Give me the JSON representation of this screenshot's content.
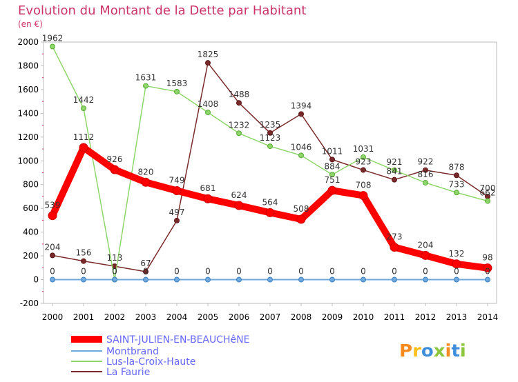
{
  "chart_data": {
    "type": "line",
    "title": "Evolution du Montant de la Dette par Habitant",
    "subtitle": "(en €)",
    "xlabel": "",
    "ylabel": "",
    "x": [
      "2000",
      "2001",
      "2002",
      "2003",
      "2004",
      "2005",
      "2006",
      "2007",
      "2008",
      "2009",
      "2010",
      "2011",
      "2012",
      "2013",
      "2014"
    ],
    "ylim": [
      -200,
      2000
    ],
    "yticks": [
      -200,
      0,
      200,
      400,
      600,
      800,
      1000,
      1200,
      1400,
      1600,
      1800,
      2000
    ],
    "grid": false,
    "legend_placement": "bottom-left",
    "series": [
      {
        "name": "SAINT-JULIEN-EN-BEAUCHêNE",
        "color": "#ff0000",
        "values": [
          539,
          1112,
          926,
          820,
          749,
          681,
          624,
          564,
          508,
          751,
          708,
          273,
          204,
          132,
          98
        ]
      },
      {
        "name": "Montbrand",
        "color": "#6fa8dc",
        "values": [
          0,
          0,
          0,
          0,
          0,
          0,
          0,
          0,
          0,
          0,
          0,
          0,
          0,
          0,
          0
        ]
      },
      {
        "name": "Lus-la-Croix-Haute",
        "color": "#8fd66a",
        "values": [
          1962,
          1442,
          0,
          1631,
          1583,
          1408,
          1232,
          1123,
          1046,
          884,
          1031,
          921,
          816,
          733,
          662
        ]
      },
      {
        "name": "La Faurie",
        "color": "#7a2a2a",
        "values": [
          204,
          156,
          113,
          67,
          497,
          1825,
          1488,
          1235,
          1394,
          1011,
          923,
          841,
          922,
          878,
          700
        ]
      }
    ]
  },
  "logo": {
    "text": "Proxiti"
  }
}
